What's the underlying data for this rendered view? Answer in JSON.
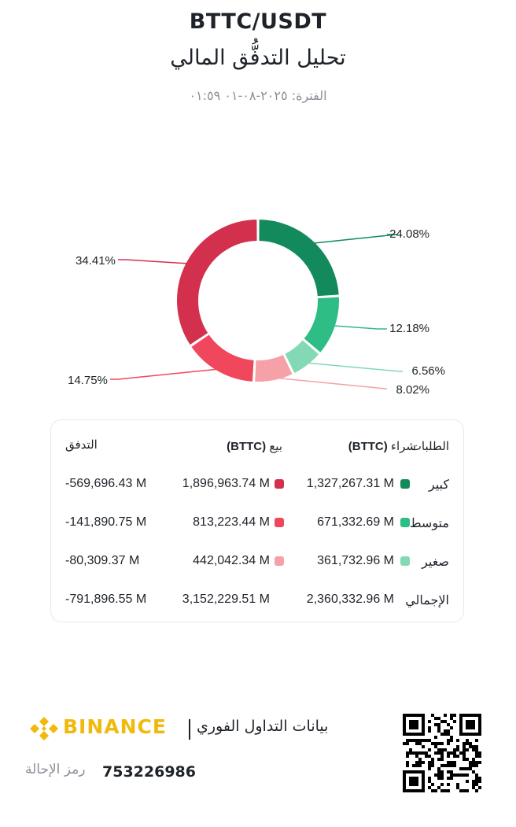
{
  "header": {
    "pair": "BTTC/USDT",
    "title": "تحليل التدفُّق المالي",
    "period": "الفترة: ٢٠٢٥-٠٨-٠١ ٠١:٥٩"
  },
  "chart_data": {
    "type": "pie",
    "donut": true,
    "slices": [
      {
        "name": "كبير شراء",
        "value": 24.08,
        "label": "24.08%",
        "color": "#128a5c"
      },
      {
        "name": "متوسط شراء",
        "value": 12.18,
        "label": "12.18%",
        "color": "#2ebd85"
      },
      {
        "name": "صغير شراء",
        "value": 6.56,
        "label": "6.56%",
        "color": "#82d9b3"
      },
      {
        "name": "صغير بيع",
        "value": 8.02,
        "label": "8.02%",
        "color": "#f6a0a8"
      },
      {
        "name": "متوسط بيع",
        "value": 14.75,
        "label": "14.75%",
        "color": "#f0475c"
      },
      {
        "name": "كبير بيع",
        "value": 34.41,
        "label": "34.41%",
        "color": "#d3304e"
      }
    ]
  },
  "table": {
    "headers": {
      "orders": "الطلبات",
      "buy": "شراء",
      "buy_unit": "(BTTC)",
      "sell": "بيع",
      "sell_unit": "(BTTC)",
      "flow": "التدفق"
    },
    "rows": [
      {
        "label": "كبير",
        "buy": "1,327,267.31 M",
        "sell": "1,896,963.74 M",
        "flow": "-569,696.43 M",
        "buy_color": "#128a5c",
        "sell_color": "#d3304e"
      },
      {
        "label": "متوسط",
        "buy": "671,332.69 M",
        "sell": "813,223.44 M",
        "flow": "-141,890.75 M",
        "buy_color": "#2ebd85",
        "sell_color": "#f0475c"
      },
      {
        "label": "صغير",
        "buy": "361,732.96 M",
        "sell": "442,042.34 M",
        "flow": "-80,309.37 M",
        "buy_color": "#82d9b3",
        "sell_color": "#f6a0a8"
      },
      {
        "label": "الإجمالي",
        "buy": "2,360,332.96 M",
        "sell": "3,152,229.51 M",
        "flow": "-791,896.55 M"
      }
    ]
  },
  "footer": {
    "brand": "BINANCE",
    "realtime": "بيانات التداول الفوري",
    "ref_label": "رمز الإحالة",
    "ref_code": "753226986",
    "brand_color": "#f0b90b"
  }
}
